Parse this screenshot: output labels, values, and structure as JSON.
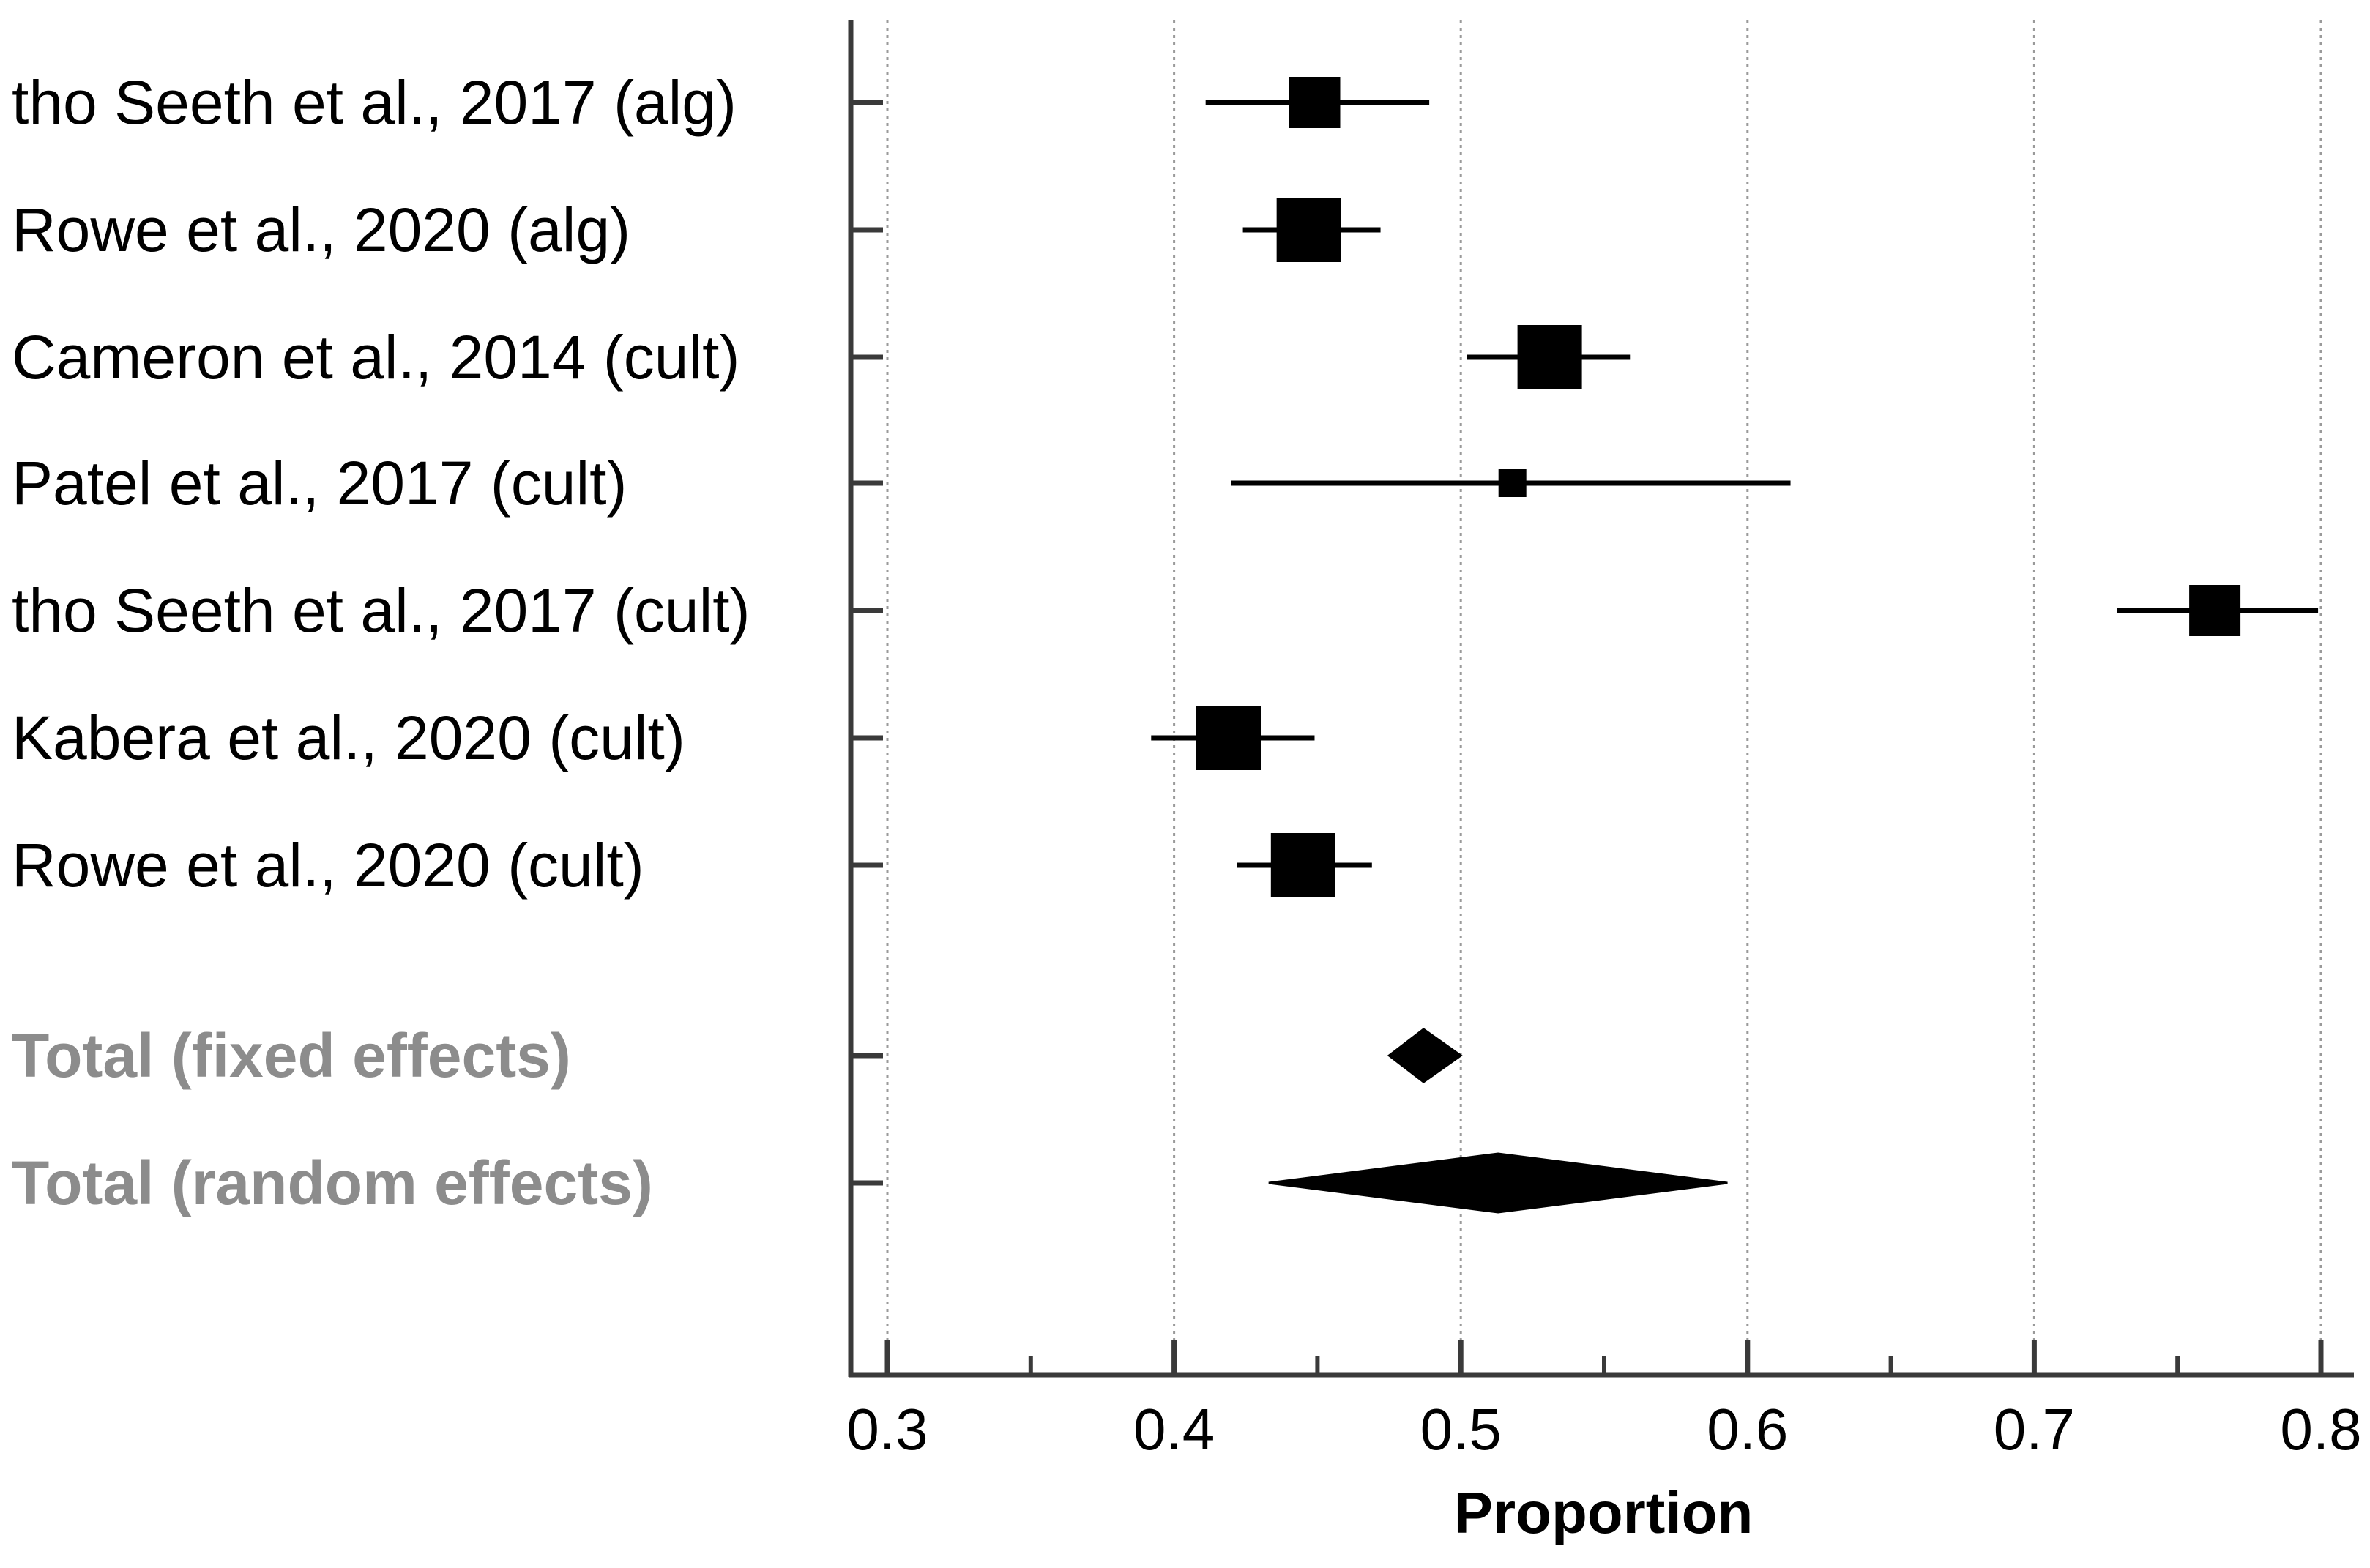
{
  "chart_data": {
    "type": "forest",
    "xlabel": "Proportion",
    "xlim": [
      0.3,
      0.8
    ],
    "xticks": [
      "0.3",
      "0.4",
      "0.5",
      "0.6",
      "0.7",
      "0.8"
    ],
    "grid": "vertical dotted",
    "studies": [
      {
        "label": "tho Seeth et al., 2017 (alg)",
        "estimate": 0.449,
        "ci": [
          0.411,
          0.489
        ],
        "weight": "medium"
      },
      {
        "label": "Rowe et al., 2020 (alg)",
        "estimate": 0.447,
        "ci": [
          0.424,
          0.472
        ],
        "weight": "large"
      },
      {
        "label": "Cameron et al., 2014 (cult)",
        "estimate": 0.531,
        "ci": [
          0.502,
          0.559
        ],
        "weight": "large"
      },
      {
        "label": "Patel et al., 2017 (cult)",
        "estimate": 0.518,
        "ci": [
          0.42,
          0.615
        ],
        "weight": "small"
      },
      {
        "label": "tho Seeth et al., 2017 (cult)",
        "estimate": 0.763,
        "ci": [
          0.729,
          0.799
        ],
        "weight": "medium"
      },
      {
        "label": "Kabera et al., 2020 (cult)",
        "estimate": 0.419,
        "ci": [
          0.392,
          0.449
        ],
        "weight": "large"
      },
      {
        "label": "Rowe et al., 2020 (cult)",
        "estimate": 0.445,
        "ci": [
          0.422,
          0.469
        ],
        "weight": "large"
      }
    ],
    "totals": [
      {
        "label": "Total (fixed effects)",
        "estimate": 0.487,
        "ci": [
          0.475,
          0.5
        ]
      },
      {
        "label": "Total (random effects)",
        "estimate": 0.513,
        "ci": [
          0.433,
          0.593
        ]
      }
    ]
  }
}
